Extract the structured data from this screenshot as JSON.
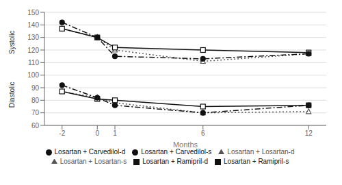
{
  "chart_data": {
    "type": "line",
    "x": [
      -2,
      0,
      1,
      6,
      12
    ],
    "series": [
      {
        "name": "Losartan + Losartan-s",
        "color": "#555555",
        "values": [
          137,
          130,
          120,
          111,
          117
        ],
        "marker": "open-triangle",
        "line_style": "dotted"
      },
      {
        "name": "Losartan + Losartan-d",
        "color": "#555555",
        "values": [
          87,
          82,
          78,
          70,
          71
        ],
        "marker": "open-triangle",
        "line_style": "dotted"
      },
      {
        "name": "Losartan + Ramipril-s",
        "color": "#111111",
        "values": [
          137,
          130,
          122,
          120,
          118
        ],
        "marker": "open-square",
        "line_style": "solid"
      },
      {
        "name": "Losartan + Ramipril-d",
        "color": "#111111",
        "values": [
          87,
          81,
          80,
          75,
          76
        ],
        "marker": "open-square",
        "line_style": "solid"
      },
      {
        "name": "Losartan + Carvedilol-s",
        "color": "#111111",
        "values": [
          142,
          130,
          115,
          113,
          117
        ],
        "marker": "circle",
        "line_style": "dashdot"
      },
      {
        "name": "Losartan + Carvedilol-d",
        "color": "#111111",
        "values": [
          92,
          82,
          76,
          70,
          76
        ],
        "marker": "circle",
        "line_style": "dashdot"
      }
    ],
    "xlim": [
      -3,
      13
    ],
    "xticks": [
      -2,
      0,
      1,
      6,
      12
    ],
    "ylim": [
      60,
      150
    ],
    "yticks": [
      60,
      70,
      80,
      90,
      100,
      110,
      120,
      130,
      140,
      150
    ],
    "xlabel": "Months",
    "annotations": [
      "Systolic",
      "Diastolic"
    ],
    "grid": "y",
    "legend": "bottom"
  }
}
